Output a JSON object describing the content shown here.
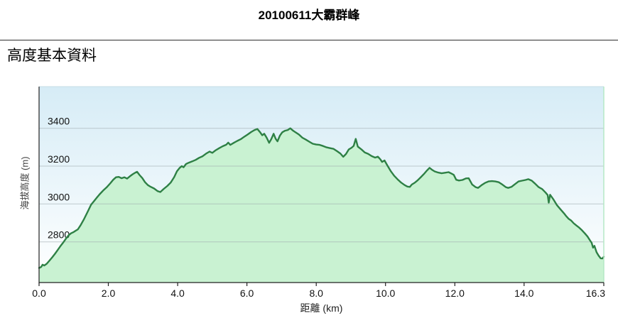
{
  "header": {
    "title": "20100611大霸群峰"
  },
  "section": {
    "title": "高度基本資料"
  },
  "chart_data": {
    "type": "area",
    "title": "",
    "xlabel": "距離 (km)",
    "ylabel": "海拔高度 (m)",
    "xlim": [
      0,
      16.3
    ],
    "ylim": [
      2585,
      3620
    ],
    "grid": "horizontal",
    "legend": "none",
    "xticks": [
      {
        "value": 0,
        "label": "0.0"
      },
      {
        "value": 2,
        "label": "2.0"
      },
      {
        "value": 4,
        "label": "4.0"
      },
      {
        "value": 6,
        "label": "6.0"
      },
      {
        "value": 8,
        "label": "8.0"
      },
      {
        "value": 10,
        "label": "10.0"
      },
      {
        "value": 12,
        "label": "12.0"
      },
      {
        "value": 14,
        "label": "14.0"
      },
      {
        "value": 16.3,
        "label": "16.3"
      }
    ],
    "yticks": [
      {
        "value": 2800,
        "label": "2800"
      },
      {
        "value": 3000,
        "label": "3000"
      },
      {
        "value": 3200,
        "label": "3200"
      },
      {
        "value": 3400,
        "label": "3400"
      }
    ],
    "colors": {
      "line": "#2e8045",
      "area_fill": "#c9f2d2",
      "plot_bg_top": "#d6ecf6",
      "plot_bg_bottom": "#ffffff",
      "gridline": "#9fabaf",
      "axis": "#222222",
      "top_border": "#c6dce4",
      "right_border": "#b5e8c5",
      "tick_text": "#111111"
    },
    "series": [
      {
        "name": "elevation_profile",
        "points": [
          [
            0.0,
            2662
          ],
          [
            0.06,
            2667
          ],
          [
            0.1,
            2679
          ],
          [
            0.15,
            2675
          ],
          [
            0.22,
            2684
          ],
          [
            0.3,
            2701
          ],
          [
            0.38,
            2718
          ],
          [
            0.46,
            2737
          ],
          [
            0.54,
            2757
          ],
          [
            0.62,
            2778
          ],
          [
            0.7,
            2797
          ],
          [
            0.78,
            2818
          ],
          [
            0.85,
            2834
          ],
          [
            0.92,
            2845
          ],
          [
            1.0,
            2852
          ],
          [
            1.06,
            2859
          ],
          [
            1.12,
            2866
          ],
          [
            1.2,
            2888
          ],
          [
            1.3,
            2921
          ],
          [
            1.4,
            2958
          ],
          [
            1.5,
            2996
          ],
          [
            1.58,
            3014
          ],
          [
            1.66,
            3032
          ],
          [
            1.75,
            3052
          ],
          [
            1.85,
            3071
          ],
          [
            1.95,
            3088
          ],
          [
            2.05,
            3108
          ],
          [
            2.14,
            3128
          ],
          [
            2.22,
            3141
          ],
          [
            2.3,
            3143
          ],
          [
            2.38,
            3136
          ],
          [
            2.46,
            3141
          ],
          [
            2.54,
            3134
          ],
          [
            2.62,
            3146
          ],
          [
            2.7,
            3157
          ],
          [
            2.78,
            3166
          ],
          [
            2.83,
            3170
          ],
          [
            2.9,
            3153
          ],
          [
            2.98,
            3137
          ],
          [
            3.06,
            3115
          ],
          [
            3.14,
            3100
          ],
          [
            3.22,
            3091
          ],
          [
            3.32,
            3082
          ],
          [
            3.42,
            3068
          ],
          [
            3.5,
            3063
          ],
          [
            3.6,
            3080
          ],
          [
            3.7,
            3095
          ],
          [
            3.8,
            3113
          ],
          [
            3.9,
            3142
          ],
          [
            3.98,
            3173
          ],
          [
            4.06,
            3191
          ],
          [
            4.12,
            3200
          ],
          [
            4.17,
            3194
          ],
          [
            4.24,
            3211
          ],
          [
            4.32,
            3218
          ],
          [
            4.42,
            3225
          ],
          [
            4.52,
            3233
          ],
          [
            4.62,
            3244
          ],
          [
            4.72,
            3252
          ],
          [
            4.82,
            3266
          ],
          [
            4.92,
            3277
          ],
          [
            5.0,
            3270
          ],
          [
            5.1,
            3284
          ],
          [
            5.2,
            3295
          ],
          [
            5.3,
            3305
          ],
          [
            5.4,
            3313
          ],
          [
            5.46,
            3324
          ],
          [
            5.52,
            3312
          ],
          [
            5.62,
            3323
          ],
          [
            5.72,
            3333
          ],
          [
            5.82,
            3342
          ],
          [
            5.92,
            3355
          ],
          [
            6.02,
            3367
          ],
          [
            6.12,
            3380
          ],
          [
            6.22,
            3391
          ],
          [
            6.3,
            3396
          ],
          [
            6.38,
            3379
          ],
          [
            6.44,
            3363
          ],
          [
            6.5,
            3371
          ],
          [
            6.57,
            3350
          ],
          [
            6.64,
            3323
          ],
          [
            6.7,
            3342
          ],
          [
            6.77,
            3371
          ],
          [
            6.83,
            3344
          ],
          [
            6.88,
            3331
          ],
          [
            6.95,
            3361
          ],
          [
            7.02,
            3379
          ],
          [
            7.1,
            3387
          ],
          [
            7.18,
            3391
          ],
          [
            7.25,
            3400
          ],
          [
            7.32,
            3389
          ],
          [
            7.4,
            3379
          ],
          [
            7.5,
            3367
          ],
          [
            7.6,
            3350
          ],
          [
            7.7,
            3340
          ],
          [
            7.8,
            3329
          ],
          [
            7.9,
            3318
          ],
          [
            8.0,
            3314
          ],
          [
            8.1,
            3312
          ],
          [
            8.2,
            3306
          ],
          [
            8.3,
            3299
          ],
          [
            8.4,
            3295
          ],
          [
            8.5,
            3291
          ],
          [
            8.6,
            3279
          ],
          [
            8.7,
            3266
          ],
          [
            8.78,
            3249
          ],
          [
            8.86,
            3264
          ],
          [
            8.94,
            3288
          ],
          [
            9.02,
            3297
          ],
          [
            9.08,
            3307
          ],
          [
            9.14,
            3344
          ],
          [
            9.2,
            3303
          ],
          [
            9.3,
            3289
          ],
          [
            9.4,
            3272
          ],
          [
            9.5,
            3265
          ],
          [
            9.6,
            3253
          ],
          [
            9.7,
            3245
          ],
          [
            9.78,
            3250
          ],
          [
            9.85,
            3236
          ],
          [
            9.9,
            3222
          ],
          [
            9.97,
            3230
          ],
          [
            10.05,
            3204
          ],
          [
            10.15,
            3174
          ],
          [
            10.25,
            3149
          ],
          [
            10.35,
            3130
          ],
          [
            10.45,
            3113
          ],
          [
            10.55,
            3100
          ],
          [
            10.63,
            3092
          ],
          [
            10.7,
            3090
          ],
          [
            10.76,
            3103
          ],
          [
            10.84,
            3112
          ],
          [
            10.92,
            3124
          ],
          [
            11.02,
            3142
          ],
          [
            11.12,
            3161
          ],
          [
            11.2,
            3178
          ],
          [
            11.27,
            3191
          ],
          [
            11.34,
            3181
          ],
          [
            11.42,
            3172
          ],
          [
            11.52,
            3166
          ],
          [
            11.62,
            3162
          ],
          [
            11.72,
            3165
          ],
          [
            11.82,
            3168
          ],
          [
            11.9,
            3161
          ],
          [
            11.97,
            3154
          ],
          [
            12.04,
            3128
          ],
          [
            12.12,
            3124
          ],
          [
            12.22,
            3127
          ],
          [
            12.32,
            3135
          ],
          [
            12.4,
            3136
          ],
          [
            12.5,
            3103
          ],
          [
            12.6,
            3089
          ],
          [
            12.67,
            3085
          ],
          [
            12.77,
            3099
          ],
          [
            12.87,
            3111
          ],
          [
            12.97,
            3119
          ],
          [
            13.07,
            3121
          ],
          [
            13.17,
            3119
          ],
          [
            13.27,
            3115
          ],
          [
            13.37,
            3103
          ],
          [
            13.47,
            3089
          ],
          [
            13.54,
            3085
          ],
          [
            13.64,
            3091
          ],
          [
            13.74,
            3105
          ],
          [
            13.84,
            3119
          ],
          [
            13.94,
            3123
          ],
          [
            14.04,
            3127
          ],
          [
            14.12,
            3131
          ],
          [
            14.22,
            3123
          ],
          [
            14.32,
            3107
          ],
          [
            14.42,
            3089
          ],
          [
            14.52,
            3079
          ],
          [
            14.62,
            3060
          ],
          [
            14.68,
            3047
          ],
          [
            14.71,
            3007
          ],
          [
            14.75,
            3049
          ],
          [
            14.85,
            3023
          ],
          [
            14.95,
            2993
          ],
          [
            15.05,
            2972
          ],
          [
            15.15,
            2951
          ],
          [
            15.22,
            2935
          ],
          [
            15.29,
            2921
          ],
          [
            15.36,
            2912
          ],
          [
            15.43,
            2898
          ],
          [
            15.51,
            2886
          ],
          [
            15.59,
            2875
          ],
          [
            15.67,
            2861
          ],
          [
            15.76,
            2843
          ],
          [
            15.83,
            2828
          ],
          [
            15.9,
            2808
          ],
          [
            15.95,
            2795
          ],
          [
            15.99,
            2769
          ],
          [
            16.03,
            2779
          ],
          [
            16.09,
            2745
          ],
          [
            16.15,
            2727
          ],
          [
            16.21,
            2713
          ],
          [
            16.26,
            2712
          ],
          [
            16.3,
            2721
          ]
        ]
      }
    ]
  }
}
